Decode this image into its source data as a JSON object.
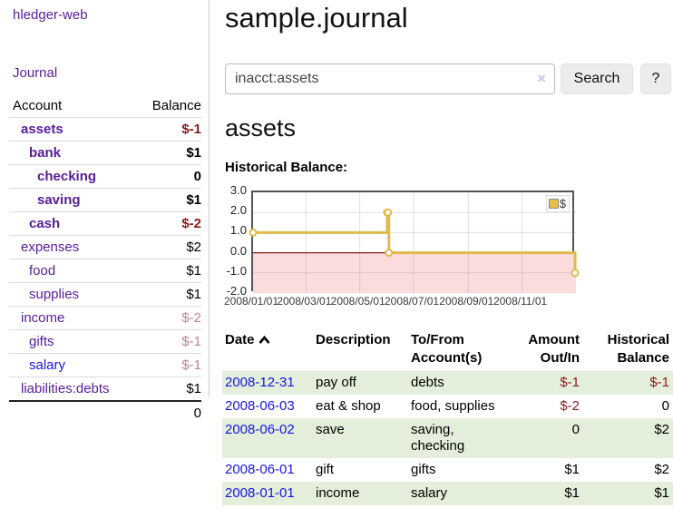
{
  "app": {
    "brand": "hledger-web",
    "nav_journal": "Journal"
  },
  "page": {
    "title": "sample.journal",
    "account_heading": "assets",
    "chart_label": "Historical Balance:"
  },
  "search": {
    "value": "inacct:assets",
    "clear_icon": "×",
    "search_label": "Search",
    "help_label": "?"
  },
  "sidebar": {
    "header": {
      "account": "Account",
      "balance": "Balance"
    },
    "accounts": [
      {
        "name": "assets",
        "balance": "$-1",
        "depth": 0,
        "bold": true,
        "tone": "neg"
      },
      {
        "name": "bank",
        "balance": "$1",
        "depth": 1,
        "bold": true,
        "tone": "pos"
      },
      {
        "name": "checking",
        "balance": "0",
        "depth": 2,
        "bold": true,
        "tone": "pos"
      },
      {
        "name": "saving",
        "balance": "$1",
        "depth": 2,
        "bold": true,
        "tone": "pos"
      },
      {
        "name": "cash",
        "balance": "$-2",
        "depth": 1,
        "bold": true,
        "tone": "neg"
      },
      {
        "name": "expenses",
        "balance": "$2",
        "depth": 0,
        "bold": false,
        "tone": "pos"
      },
      {
        "name": "food",
        "balance": "$1",
        "depth": 1,
        "bold": false,
        "tone": "pos"
      },
      {
        "name": "supplies",
        "balance": "$1",
        "depth": 1,
        "bold": false,
        "tone": "pos"
      },
      {
        "name": "income",
        "balance": "$-2",
        "depth": 0,
        "bold": false,
        "tone": "negmuted"
      },
      {
        "name": "gifts",
        "balance": "$-1",
        "depth": 1,
        "bold": false,
        "tone": "negmuted"
      },
      {
        "name": "salary",
        "balance": "$-1",
        "depth": 1,
        "bold": false,
        "tone": "negmuted"
      },
      {
        "name": "liabilities:debts",
        "balance": "$1",
        "depth": 0,
        "bold": false,
        "tone": "pos"
      }
    ],
    "total": "0"
  },
  "chart_data": {
    "type": "line",
    "step": true,
    "title": "Historical Balance:",
    "legend": "$",
    "legend_position": "top-right",
    "grid": true,
    "ylim": [
      -2,
      3
    ],
    "y_ticks": [
      "3.0",
      "2.0",
      "1.0",
      "0.0",
      "-1.0",
      "-2.0"
    ],
    "grid_y": [
      2,
      1,
      -1
    ],
    "x_ticks": [
      "2008/01/01",
      "2008/03/01",
      "2008/05/01",
      "2008/07/01",
      "2008/09/01",
      "2008/11/01"
    ],
    "x_range": [
      "2008/01/01",
      "2009/01/01"
    ],
    "series": [
      {
        "name": "$",
        "color": "#e0ba4b",
        "points": [
          {
            "date": "2008-01-01",
            "value": 1
          },
          {
            "date": "2008-06-01",
            "value": 2
          },
          {
            "date": "2008-06-02",
            "value": 2
          },
          {
            "date": "2008-06-03",
            "value": 0
          },
          {
            "date": "2008-12-31",
            "value": -1
          }
        ]
      }
    ],
    "negative_fill": "#fbdcdd",
    "zero_line_color": "#8c1a1a"
  },
  "register": {
    "headers": {
      "date": "Date",
      "description": "Description",
      "account_l1": "To/From",
      "account_l2": "Account(s)",
      "amount_l1": "Amount",
      "amount_l2": "Out/In",
      "balance_l1": "Historical",
      "balance_l2": "Balance"
    },
    "rows": [
      {
        "date": "2008-12-31",
        "description": "pay off",
        "accounts": "debts",
        "amount": "$-1",
        "balance": "$-1"
      },
      {
        "date": "2008-06-03",
        "description": "eat & shop",
        "accounts": "food, supplies",
        "amount": "$-2",
        "balance": "0"
      },
      {
        "date": "2008-06-02",
        "description": "save",
        "accounts": "saving,\nchecking",
        "amount": "0",
        "balance": "$2"
      },
      {
        "date": "2008-06-01",
        "description": "gift",
        "accounts": "gifts",
        "amount": "$1",
        "balance": "$2"
      },
      {
        "date": "2008-01-01",
        "description": "income",
        "accounts": "salary",
        "amount": "$1",
        "balance": "$1"
      }
    ]
  }
}
